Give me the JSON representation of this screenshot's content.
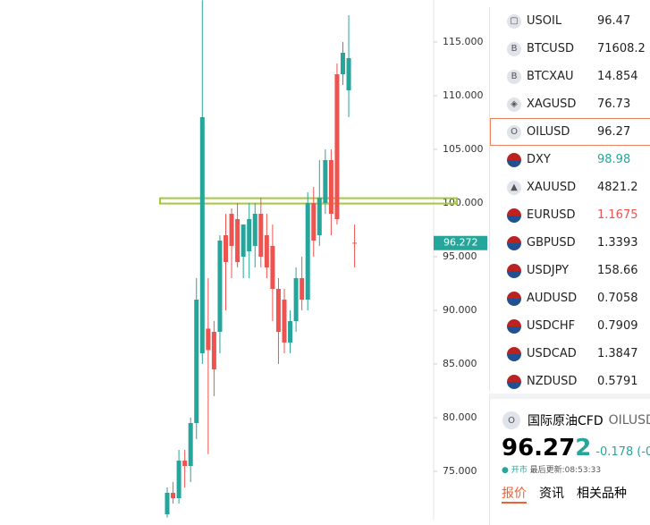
{
  "chart": {
    "type": "candlestick",
    "up_color": "#26a69a",
    "down_color": "#ef5350",
    "ylim": [
      70,
      118.9
    ],
    "yticks": [
      {
        "value": 75,
        "label": "75.000"
      },
      {
        "value": 80,
        "label": "80.000"
      },
      {
        "value": 85,
        "label": "85.000"
      },
      {
        "value": 90,
        "label": "90.000"
      },
      {
        "value": 95,
        "label": "95.000"
      },
      {
        "value": 100,
        "label": "100.000"
      },
      {
        "value": 105,
        "label": "105.000"
      },
      {
        "value": 110,
        "label": "110.000"
      },
      {
        "value": 115,
        "label": "115.000"
      }
    ],
    "last_price": {
      "value": 96.272,
      "label": "96.272"
    },
    "level": 100.2,
    "candles": [
      {
        "open": 71,
        "high": 73.5,
        "low": 70.7,
        "close": 73
      },
      {
        "open": 73,
        "high": 74,
        "low": 72,
        "close": 72.5
      },
      {
        "open": 72.5,
        "high": 77,
        "low": 72,
        "close": 76
      },
      {
        "open": 76,
        "high": 77,
        "low": 73.5,
        "close": 75.5
      },
      {
        "open": 75.5,
        "high": 80,
        "low": 74,
        "close": 79.5
      },
      {
        "open": 79.5,
        "high": 93,
        "low": 78,
        "close": 91
      },
      {
        "open": 86,
        "high": 118.9,
        "low": 85,
        "close": 108
      },
      {
        "open": 88.3,
        "high": 93,
        "low": 76.6,
        "close": 86.3
      },
      {
        "open": 88,
        "high": 89,
        "low": 82,
        "close": 84.5
      },
      {
        "open": 88,
        "high": 97,
        "low": 86,
        "close": 96.5
      },
      {
        "open": 97,
        "high": 99,
        "low": 90,
        "close": 94.5
      },
      {
        "open": 99,
        "high": 99.5,
        "low": 93,
        "close": 96
      },
      {
        "open": 98.5,
        "high": 100,
        "low": 94,
        "close": 94.5
      },
      {
        "open": 95,
        "high": 98,
        "low": 93,
        "close": 98
      },
      {
        "open": 95.5,
        "high": 100,
        "low": 93,
        "close": 98.5
      },
      {
        "open": 96,
        "high": 100,
        "low": 94,
        "close": 99
      },
      {
        "open": 99,
        "high": 100.5,
        "low": 94,
        "close": 95
      },
      {
        "open": 97,
        "high": 99,
        "low": 93,
        "close": 94
      },
      {
        "open": 96,
        "high": 98,
        "low": 89,
        "close": 92
      },
      {
        "open": 92,
        "high": 93,
        "low": 85,
        "close": 88
      },
      {
        "open": 91,
        "high": 92,
        "low": 86,
        "close": 87
      },
      {
        "open": 87,
        "high": 90,
        "low": 86,
        "close": 89
      },
      {
        "open": 89,
        "high": 94,
        "low": 88,
        "close": 93
      },
      {
        "open": 93,
        "high": 95,
        "low": 90,
        "close": 91
      },
      {
        "open": 91,
        "high": 101,
        "low": 90,
        "close": 100
      },
      {
        "open": 100,
        "high": 101.5,
        "low": 95,
        "close": 96.5
      },
      {
        "open": 97,
        "high": 104,
        "low": 96,
        "close": 100.5
      },
      {
        "open": 100,
        "high": 105,
        "low": 99,
        "close": 104
      },
      {
        "open": 104,
        "high": 105,
        "low": 97,
        "close": 99
      },
      {
        "open": 112,
        "high": 113,
        "low": 98,
        "close": 98.5
      },
      {
        "open": 112,
        "high": 115,
        "low": 111,
        "close": 114
      },
      {
        "open": 110.5,
        "high": 117.5,
        "low": 108,
        "close": 113.5
      },
      {
        "open": 96.3,
        "high": 98,
        "low": 94,
        "close": 96.27
      }
    ]
  },
  "watchlist": [
    {
      "icon": "▢",
      "symbol": "USOIL",
      "price": "96.47",
      "color": "#222"
    },
    {
      "icon": "B",
      "symbol": "BTCUSD",
      "price": "71608.2",
      "color": "#222"
    },
    {
      "icon": "B",
      "symbol": "BTCXAU",
      "price": "14.854",
      "color": "#222"
    },
    {
      "icon": "◈",
      "symbol": "XAGUSD",
      "price": "76.73",
      "color": "#222"
    },
    {
      "icon": "O",
      "symbol": "OILUSD",
      "price": "96.27",
      "color": "#222"
    },
    {
      "icon": "",
      "symbol": "DXY",
      "price": "98.98",
      "color": "#26a69a"
    },
    {
      "icon": "▲",
      "symbol": "XAUUSD",
      "price": "4821.2",
      "color": "#222"
    },
    {
      "icon": "",
      "symbol": "EURUSD",
      "price": "1.1675",
      "color": "#ef5350"
    },
    {
      "icon": "",
      "symbol": "GBPUSD",
      "price": "1.3393",
      "color": "#222"
    },
    {
      "icon": "",
      "symbol": "USDJPY",
      "price": "158.66",
      "color": "#222"
    },
    {
      "icon": "",
      "symbol": "AUDUSD",
      "price": "0.7058",
      "color": "#222"
    },
    {
      "icon": "",
      "symbol": "USDCHF",
      "price": "0.7909",
      "color": "#222"
    },
    {
      "icon": "",
      "symbol": "USDCAD",
      "price": "1.3847",
      "color": "#222"
    },
    {
      "icon": "",
      "symbol": "NZDUSD",
      "price": "0.5791",
      "color": "#222"
    }
  ],
  "detail": {
    "icon": "O",
    "name": "国际原油CFD",
    "symbol": "OILUSD",
    "price_main": "96.27",
    "price_last": "2",
    "change": "-0.178",
    "change_pct": "(-0",
    "status": "● 开市",
    "updated": "最后更新:08:53:33",
    "tabs": [
      "报价",
      "资讯",
      "相关品种"
    ]
  }
}
